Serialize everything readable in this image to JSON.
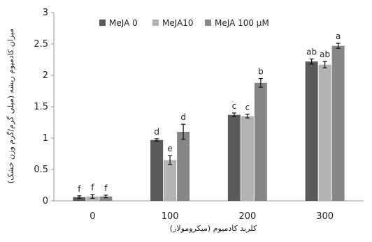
{
  "chart_data": {
    "type": "bar",
    "xlabel": "کلرید کادمیوم (میکرومولار)",
    "ylabel": "میزان کادمیوم ریشه (میلی گرم/گرم وزن خشک)",
    "ylim": [
      0,
      3
    ],
    "yticks": [
      0,
      0.5,
      1,
      1.5,
      2,
      2.5,
      3
    ],
    "grid": false,
    "legend_position": "top",
    "categories": [
      "0",
      "100",
      "200",
      "300"
    ],
    "series": [
      {
        "name": "MeJA 0",
        "color": "#5a5a5a",
        "values": [
          0.06,
          0.97,
          1.37,
          2.22
        ],
        "errors": [
          0.02,
          0.02,
          0.03,
          0.04
        ],
        "letters": [
          "f",
          "d",
          "c",
          "ab"
        ]
      },
      {
        "name": "MeJA10",
        "color": "#b3b3b3",
        "values": [
          0.07,
          0.65,
          1.35,
          2.17
        ],
        "errors": [
          0.03,
          0.07,
          0.03,
          0.05
        ],
        "letters": [
          "f",
          "e",
          "c",
          "ab"
        ]
      },
      {
        "name": "MeJA 100 μM",
        "color": "#868686",
        "values": [
          0.07,
          1.1,
          1.88,
          2.47
        ],
        "errors": [
          0.02,
          0.12,
          0.07,
          0.04
        ],
        "letters": [
          "f",
          "d",
          "b",
          "a"
        ]
      }
    ]
  }
}
